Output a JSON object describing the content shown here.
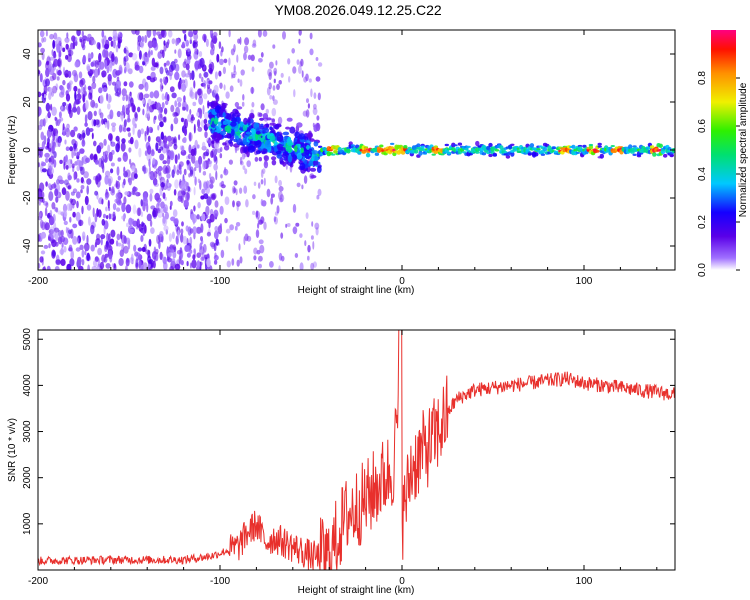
{
  "chart_data": [
    {
      "type": "heatmap",
      "title": "YM08.2026.049.12.25.C22",
      "xlabel": "Height of straight line (km)",
      "ylabel": "Frequency (Hz)",
      "xlim": [
        -200,
        150
      ],
      "ylim": [
        -50,
        50
      ],
      "xticks": [
        "-200",
        "-100",
        "0",
        "100"
      ],
      "xtick_values": [
        -200,
        -100,
        0,
        100
      ],
      "yticks": [
        "-40",
        "-20",
        "0",
        "20",
        "40"
      ],
      "ytick_values": [
        -40,
        -20,
        0,
        20,
        40
      ],
      "colorbar": {
        "label": "Normalized spectral amplitude",
        "range": [
          0,
          1
        ],
        "ticks": [
          "0.0",
          "0.2",
          "0.4",
          "0.6",
          "0.8"
        ],
        "tick_values": [
          0.0,
          0.2,
          0.4,
          0.6,
          0.8
        ]
      },
      "regions": [
        {
          "x": [
            -200,
            -105
          ],
          "description": "scattered low-amplitude noise across all frequencies",
          "amplitude": 0.12
        },
        {
          "x": [
            -105,
            -45
          ],
          "center_hz_start": 12,
          "center_hz_end": -3,
          "amplitude": 0.35
        },
        {
          "x": [
            -45,
            150
          ],
          "center_hz": 0,
          "amplitude": 0.5,
          "peaks_at": [
            -38,
            -20,
            -10,
            -5,
            0,
            20,
            90,
            105,
            118,
            140
          ]
        }
      ]
    },
    {
      "type": "line",
      "xlabel": "Height of straight line (km)",
      "ylabel": "SNR (10 * v/v)",
      "xlim": [
        -200,
        150
      ],
      "ylim": [
        0,
        5200
      ],
      "xticks": [
        "-200",
        "-100",
        "0",
        "100"
      ],
      "xtick_values": [
        -200,
        -100,
        0,
        100
      ],
      "yticks": [
        "1000",
        "2000",
        "3000",
        "4000",
        "5000"
      ],
      "ytick_values": [
        1000,
        2000,
        3000,
        4000,
        5000
      ],
      "color": "#e8302c",
      "series": [
        {
          "name": "SNR",
          "x": [
            -200,
            -160,
            -120,
            -105,
            -90,
            -85,
            -80,
            -75,
            -70,
            -60,
            -50,
            -40,
            -35,
            -30,
            -20,
            -10,
            -5,
            -2,
            0,
            2,
            5,
            10,
            15,
            20,
            25,
            30,
            40,
            60,
            80,
            90,
            100,
            120,
            140,
            150
          ],
          "y": [
            200,
            220,
            220,
            300,
            500,
            800,
            1000,
            600,
            700,
            500,
            300,
            250,
            800,
            1200,
            1500,
            2000,
            2200,
            3500,
            1000,
            1500,
            2200,
            2500,
            2700,
            3000,
            3400,
            3700,
            3900,
            4000,
            4100,
            4150,
            4050,
            3950,
            3850,
            3800
          ]
        }
      ]
    }
  ]
}
